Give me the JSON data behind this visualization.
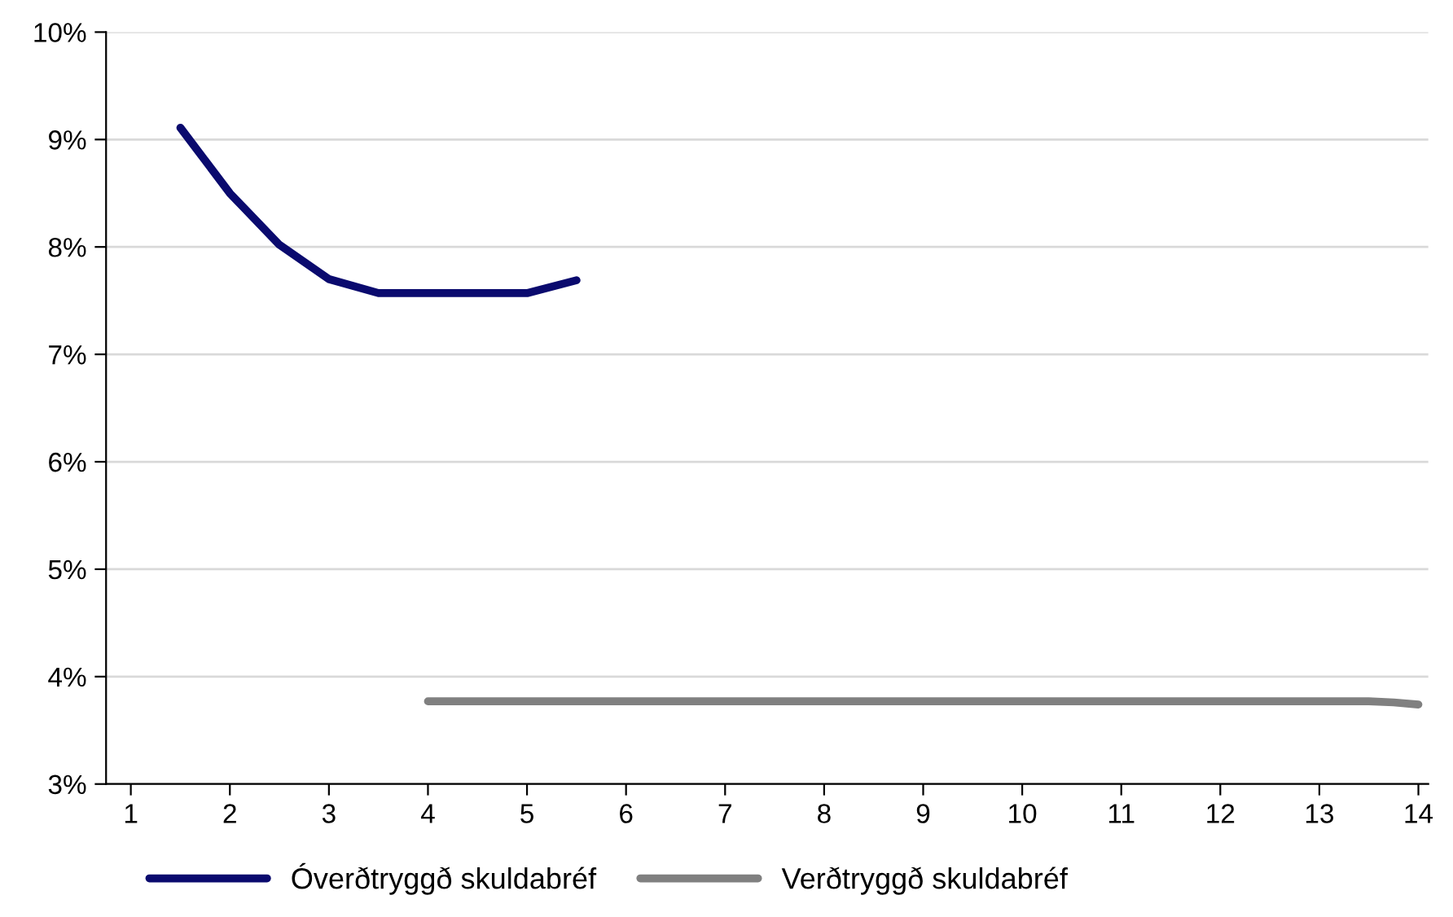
{
  "chart_data": {
    "type": "line",
    "xlim": [
      0.75,
      14.1
    ],
    "xticks": [
      1,
      2,
      3,
      4,
      5,
      6,
      7,
      8,
      9,
      10,
      11,
      12,
      13,
      14
    ],
    "ylim": [
      3,
      10
    ],
    "yticks": [
      {
        "value": 3,
        "label": "3%"
      },
      {
        "value": 4,
        "label": "4%"
      },
      {
        "value": 5,
        "label": "5%"
      },
      {
        "value": 6,
        "label": "6%"
      },
      {
        "value": 7,
        "label": "7%"
      },
      {
        "value": 8,
        "label": "8%"
      },
      {
        "value": 9,
        "label": "9%"
      },
      {
        "value": 10,
        "label": "10%"
      }
    ],
    "grid": "y",
    "legend": "bottom",
    "marker": "none",
    "line_style": "solid",
    "series": [
      {
        "name": "Óverðtryggð skuldabréf",
        "color": "#0a0a6e",
        "x": [
          1.5,
          2,
          2.5,
          3,
          3.5,
          4,
          4.5,
          5,
          5.5
        ],
        "values": [
          9.11,
          8.5,
          8.02,
          7.7,
          7.57,
          7.57,
          7.57,
          7.57,
          7.69
        ]
      },
      {
        "name": "Verðtryggð skuldabréf",
        "color": "#808080",
        "x": [
          4,
          13.5,
          13.75,
          14
        ],
        "values": [
          3.77,
          3.77,
          3.76,
          3.74
        ]
      }
    ]
  }
}
